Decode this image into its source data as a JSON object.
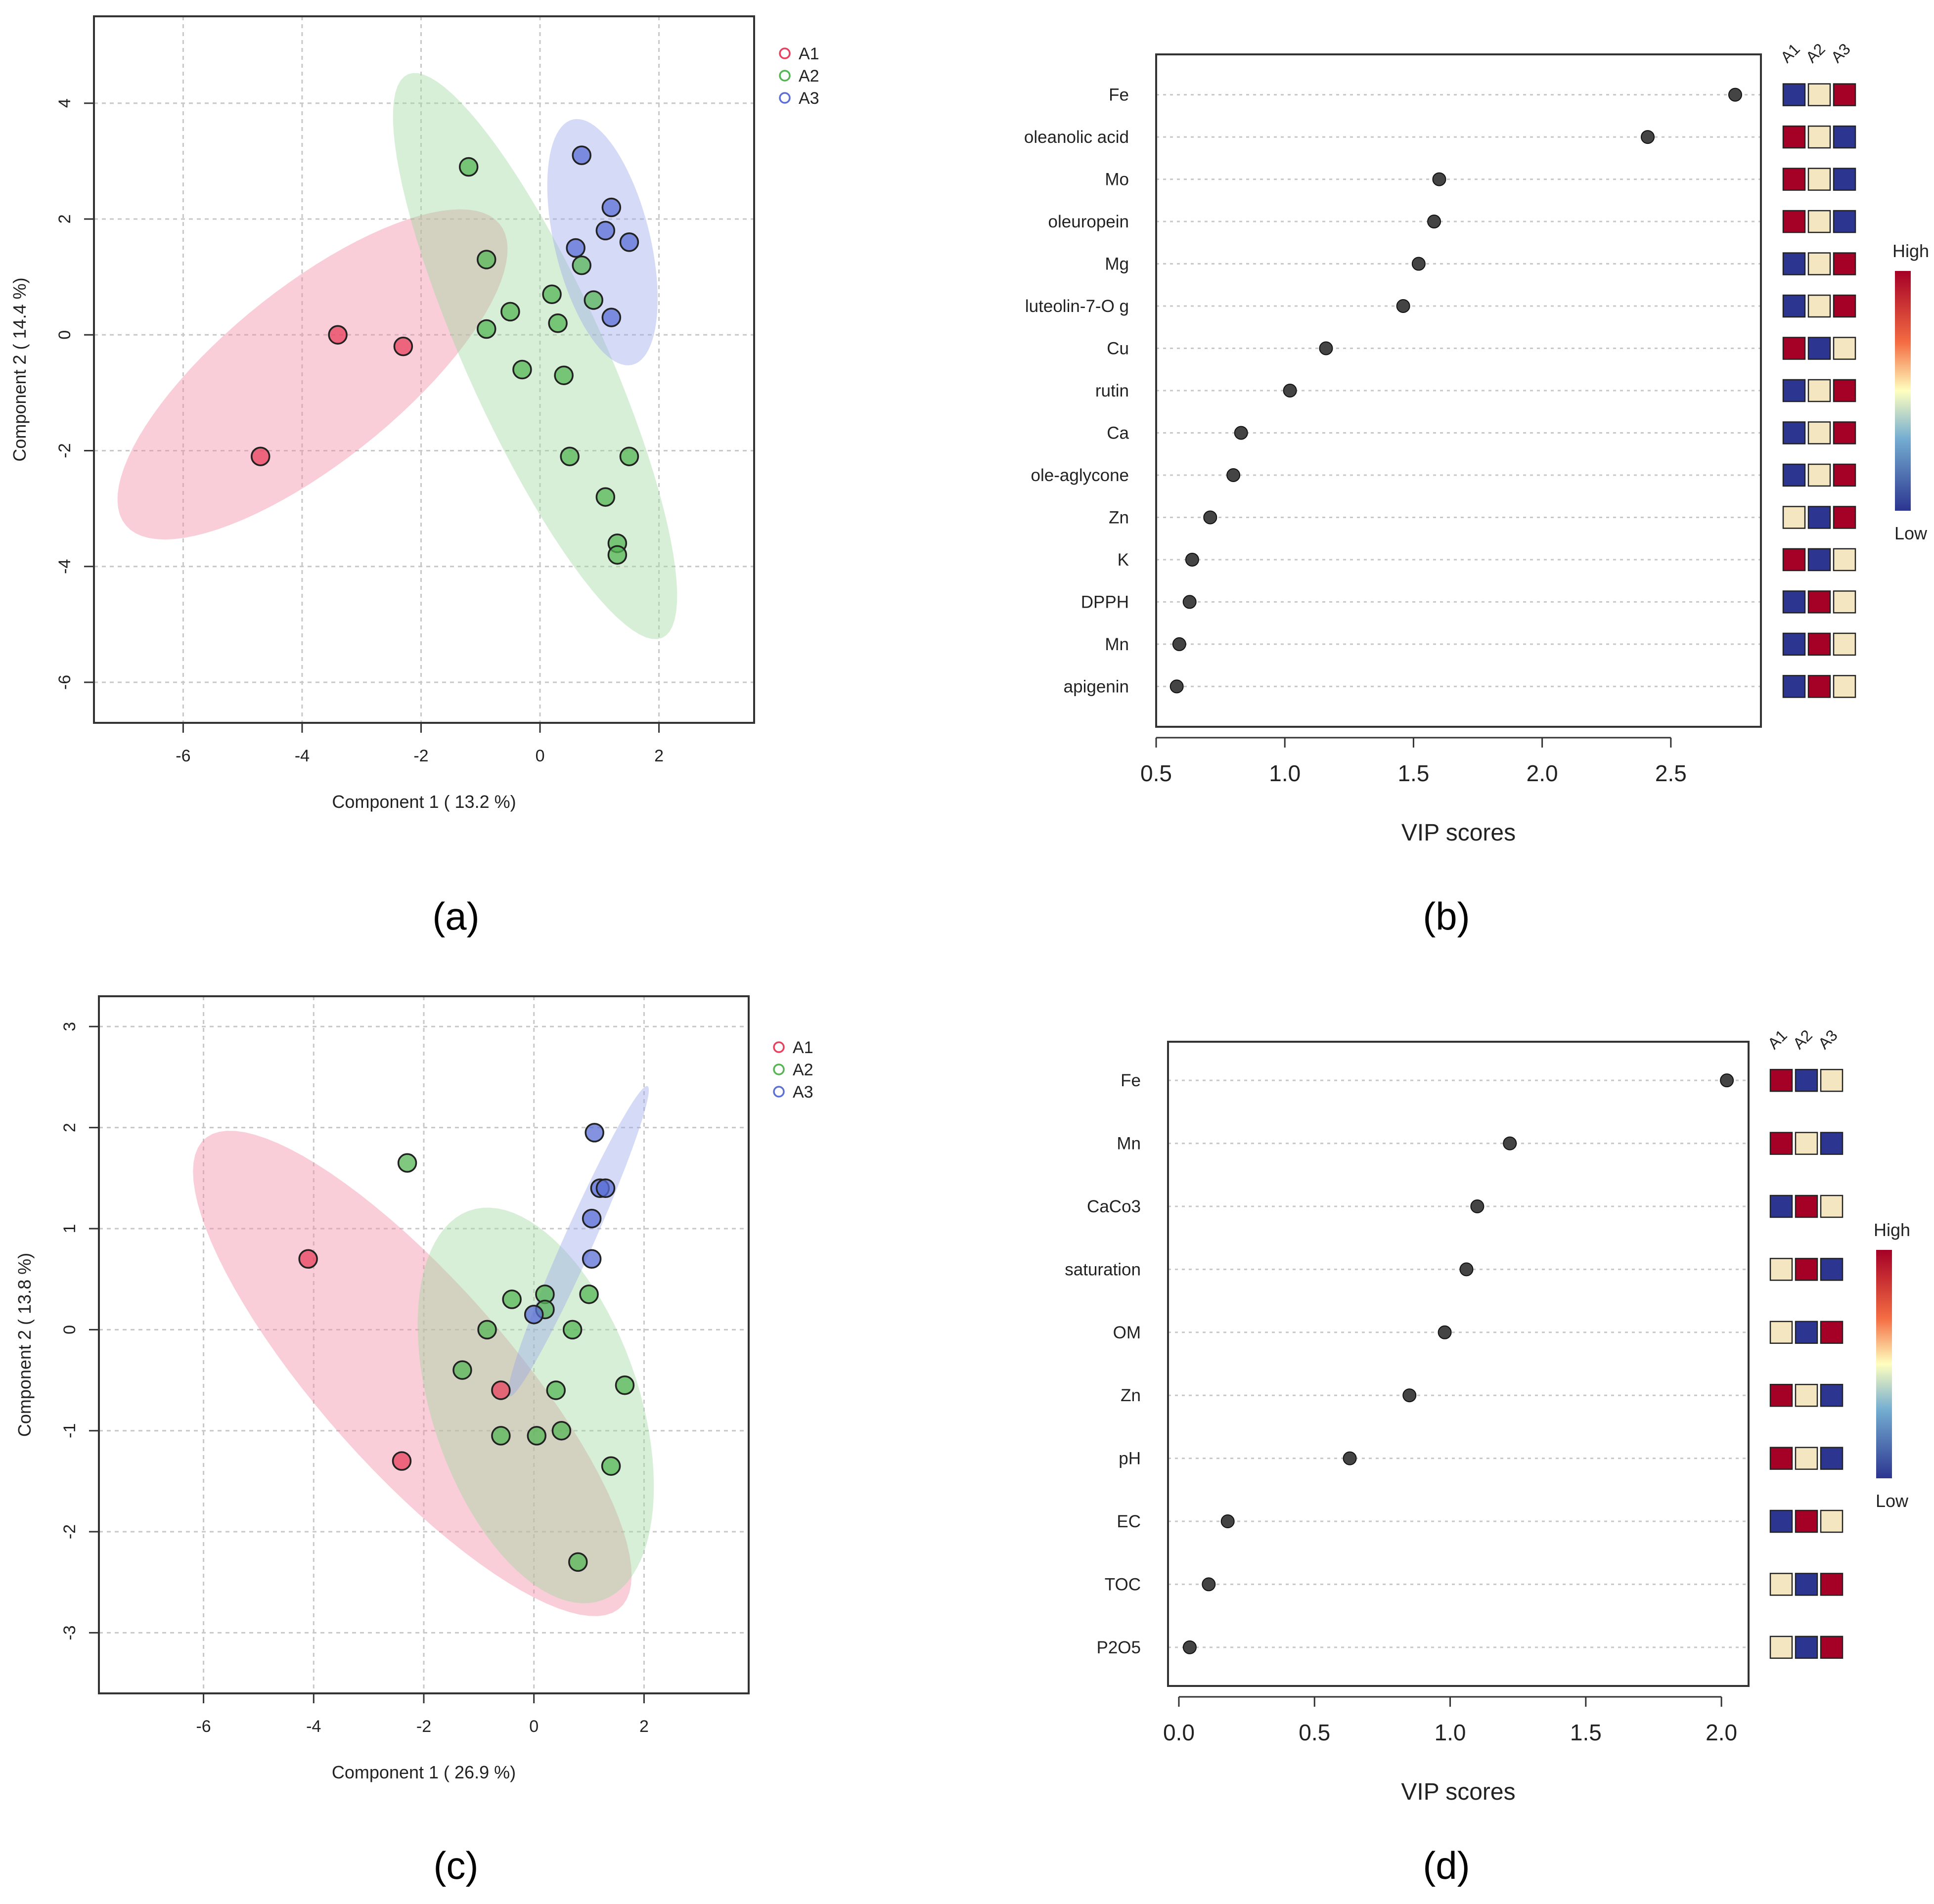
{
  "figure": {
    "captions": [
      "(a)",
      "(b)",
      "(c)",
      "(d)"
    ]
  },
  "colors": {
    "A1": "#e8415e",
    "A2": "#55b555",
    "A3": "#5b6fd6",
    "ellipse_A1": "#f08aa3",
    "ellipse_A2": "#9fd89f",
    "ellipse_A3": "#9aa6ea",
    "grid": "#c8c8c8",
    "vip_point": "#444444",
    "heat_high": "#a50026",
    "heat_mid": "#f4e6c0",
    "heat_low": "#2c3590"
  },
  "chart_data": [
    {
      "id": "a",
      "type": "scatter",
      "title": "",
      "xlabel": "Component 1 ( 13.2 %)",
      "ylabel": "Component 2 ( 14.4 %)",
      "xlim": [
        -7.5,
        3.6
      ],
      "ylim": [
        -6.7,
        5.5
      ],
      "xticks": [
        -6,
        -4,
        -2,
        0,
        2
      ],
      "yticks": [
        -6,
        -4,
        -2,
        0,
        2,
        4
      ],
      "grid": true,
      "legend": {
        "position": "top-right-outside",
        "entries": [
          "A1",
          "A2",
          "A3"
        ]
      },
      "series": [
        {
          "name": "A1",
          "points": [
            [
              -3.4,
              0.0
            ],
            [
              -2.3,
              -0.2
            ],
            [
              -4.7,
              -2.1
            ]
          ]
        },
        {
          "name": "A2",
          "points": [
            [
              -1.2,
              2.9
            ],
            [
              -0.9,
              1.3
            ],
            [
              -0.9,
              0.1
            ],
            [
              -0.5,
              0.4
            ],
            [
              -0.3,
              -0.6
            ],
            [
              0.2,
              0.7
            ],
            [
              0.3,
              0.2
            ],
            [
              0.7,
              1.2
            ],
            [
              0.9,
              0.6
            ],
            [
              0.4,
              -0.7
            ],
            [
              0.5,
              -2.1
            ],
            [
              1.5,
              -2.1
            ],
            [
              1.1,
              -2.8
            ],
            [
              1.3,
              -3.6
            ],
            [
              1.3,
              -3.8
            ]
          ]
        },
        {
          "name": "A3",
          "points": [
            [
              0.7,
              3.1
            ],
            [
              1.2,
              2.2
            ],
            [
              1.1,
              1.8
            ],
            [
              1.5,
              1.6
            ],
            [
              0.6,
              1.5
            ],
            [
              1.2,
              0.3
            ]
          ]
        }
      ],
      "ellipses": [
        {
          "name": "A1",
          "points": [
            [
              -5.9,
              -3.5
            ],
            [
              -6.85,
              -2.0
            ],
            [
              -4.5,
              0.7
            ],
            [
              -0.75,
              2.0
            ],
            [
              -0.65,
              1.1
            ],
            [
              -4.3,
              -2.4
            ]
          ]
        },
        {
          "name": "A2",
          "points": [
            [
              -1.9,
              3.6
            ],
            [
              -0.2,
              2.0
            ],
            [
              2.1,
              -3.2
            ],
            [
              1.9,
              -5.3
            ],
            [
              -0.6,
              -2.1
            ],
            [
              -1.8,
              2.8
            ]
          ]
        },
        {
          "name": "A3",
          "points": [
            [
              0.9,
              3.8
            ],
            [
              1.9,
              1.5
            ],
            [
              1.5,
              0.1
            ],
            [
              1.3,
              -0.4
            ],
            [
              0.5,
              1.5
            ],
            [
              0.2,
              3.1
            ]
          ]
        }
      ]
    },
    {
      "id": "b",
      "type": "scatter",
      "subtype": "vip_scores",
      "xlabel": "VIP scores",
      "xlim": [
        0.5,
        2.85
      ],
      "xticks": [
        "0.5",
        "1.0",
        "1.5",
        "2.0",
        "2.5"
      ],
      "grid": true,
      "heatmap_columns": [
        "A1",
        "A2",
        "A3"
      ],
      "colorscale": {
        "high_label": "High",
        "low_label": "Low"
      },
      "features": [
        "Fe",
        "oleanolic acid",
        "Mo",
        "oleuropein",
        "Mg",
        "luteolin-7-O g",
        "Cu",
        "rutin",
        "Ca",
        "ole-aglycone",
        "Zn",
        "K",
        "DPPH",
        "Mn",
        "apigenin"
      ],
      "values": [
        2.75,
        2.41,
        1.6,
        1.58,
        1.52,
        1.46,
        1.16,
        1.02,
        0.83,
        0.8,
        0.71,
        0.64,
        0.63,
        0.59,
        0.58
      ],
      "heat": [
        [
          "low",
          "mid",
          "high"
        ],
        [
          "high",
          "mid",
          "low"
        ],
        [
          "high",
          "mid",
          "low"
        ],
        [
          "high",
          "mid",
          "low"
        ],
        [
          "low",
          "mid",
          "high"
        ],
        [
          "low",
          "mid",
          "high"
        ],
        [
          "high",
          "low",
          "mid"
        ],
        [
          "low",
          "mid",
          "high"
        ],
        [
          "low",
          "mid",
          "high"
        ],
        [
          "low",
          "mid",
          "high"
        ],
        [
          "mid",
          "low",
          "high"
        ],
        [
          "high",
          "low",
          "mid"
        ],
        [
          "low",
          "high",
          "mid"
        ],
        [
          "low",
          "high",
          "mid"
        ],
        [
          "low",
          "high",
          "mid"
        ]
      ]
    },
    {
      "id": "c",
      "type": "scatter",
      "title": "",
      "xlabel": "Component 1 ( 26.9 %)",
      "ylabel": "Component 2 ( 13.8 %)",
      "xlim": [
        -7.9,
        3.9
      ],
      "ylim": [
        -3.6,
        3.3
      ],
      "xticks": [
        -6,
        -4,
        -2,
        0,
        2
      ],
      "yticks": [
        -3,
        -2,
        -1,
        0,
        1,
        2,
        3
      ],
      "grid": true,
      "legend": {
        "position": "top-right-outside",
        "entries": [
          "A1",
          "A2",
          "A3"
        ]
      },
      "series": [
        {
          "name": "A1",
          "points": [
            [
              -4.1,
              0.7
            ],
            [
              -0.6,
              -0.6
            ],
            [
              -2.4,
              -1.3
            ]
          ]
        },
        {
          "name": "A2",
          "points": [
            [
              -2.3,
              1.65
            ],
            [
              -0.4,
              0.3
            ],
            [
              -0.85,
              0.0
            ],
            [
              0.2,
              0.35
            ],
            [
              0.2,
              0.2
            ],
            [
              1.0,
              0.35
            ],
            [
              0.7,
              0.0
            ],
            [
              -1.3,
              -0.4
            ],
            [
              0.4,
              -0.6
            ],
            [
              1.65,
              -0.55
            ],
            [
              -0.6,
              -1.05
            ],
            [
              0.05,
              -1.05
            ],
            [
              0.5,
              -1.0
            ],
            [
              1.4,
              -1.35
            ],
            [
              0.8,
              -2.3
            ]
          ]
        },
        {
          "name": "A3",
          "points": [
            [
              1.1,
              1.95
            ],
            [
              1.2,
              1.4
            ],
            [
              1.3,
              1.4
            ],
            [
              1.05,
              1.1
            ],
            [
              1.05,
              0.7
            ],
            [
              0.0,
              0.15
            ]
          ]
        }
      ],
      "ellipses": [
        {
          "name": "A1",
          "points": [
            [
              -6.5,
              1.1
            ],
            [
              -5.0,
              2.15
            ],
            [
              -1.5,
              0.5
            ],
            [
              1.95,
              -2.05
            ],
            [
              0.7,
              -2.9
            ],
            [
              -2.9,
              -1.4
            ]
          ]
        },
        {
          "name": "A2",
          "points": [
            [
              -2.5,
              0.0
            ],
            [
              -0.9,
              1.9
            ],
            [
              2.6,
              -0.8
            ],
            [
              1.5,
              -2.5
            ],
            [
              0.5,
              -2.5
            ],
            [
              -1.0,
              -0.6
            ]
          ]
        },
        {
          "name": "A3",
          "points": [
            [
              0.3,
              0.35
            ],
            [
              1.9,
              2.55
            ],
            [
              2.2,
              2.2
            ],
            [
              -0.15,
              -0.35
            ],
            [
              0.0,
              0.0
            ],
            [
              0.6,
              0.5
            ]
          ]
        }
      ]
    },
    {
      "id": "d",
      "type": "scatter",
      "subtype": "vip_scores",
      "xlabel": "VIP scores",
      "xlim": [
        -0.04,
        2.1
      ],
      "xticks": [
        "0.0",
        "0.5",
        "1.0",
        "1.5",
        "2.0"
      ],
      "grid": true,
      "heatmap_columns": [
        "A1",
        "A2",
        "A3"
      ],
      "colorscale": {
        "high_label": "High",
        "low_label": "Low"
      },
      "features": [
        "Fe",
        "Mn",
        "CaCo3",
        "saturation",
        "OM",
        "Zn",
        "pH",
        "EC",
        "TOC",
        "P2O5"
      ],
      "values": [
        2.02,
        1.22,
        1.1,
        1.06,
        0.98,
        0.85,
        0.63,
        0.18,
        0.11,
        0.04
      ],
      "heat": [
        [
          "high",
          "low",
          "mid"
        ],
        [
          "high",
          "mid",
          "low"
        ],
        [
          "low",
          "high",
          "mid"
        ],
        [
          "mid",
          "high",
          "low"
        ],
        [
          "mid",
          "low",
          "high"
        ],
        [
          "high",
          "mid",
          "low"
        ],
        [
          "high",
          "mid",
          "low"
        ],
        [
          "low",
          "high",
          "mid"
        ],
        [
          "mid",
          "low",
          "high"
        ],
        [
          "mid",
          "low",
          "high"
        ]
      ]
    }
  ]
}
